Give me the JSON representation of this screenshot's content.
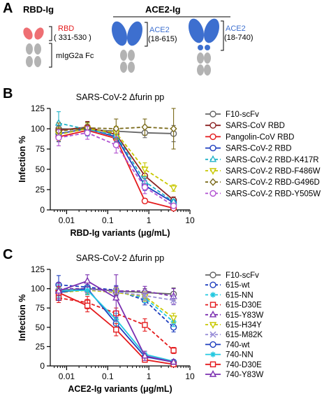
{
  "panel_a": {
    "letter": "A",
    "rbd_title": "RBD-Ig",
    "ace2_title": "ACE2-Ig",
    "rbd_label": "RBD",
    "rbd_range": "( 331-530 )",
    "fc_label": "mIgG2a Fc",
    "ace2_label_1": "ACE2",
    "ace2_range_1": "(18-615)",
    "ace2_label_2": "ACE2",
    "ace2_range_2": "(18-740)",
    "colors": {
      "rbd": "#ee6f73",
      "ace2": "#3d6fcf",
      "fc": "#b3b3b3"
    }
  },
  "chart_data": [
    {
      "panel": "B",
      "type": "line",
      "title": "SARS-CoV-2 Δfurin pp",
      "xlabel": "RBD-Ig variants (μg/mL)",
      "ylabel": "Infection %",
      "x_scale": "log",
      "xlim": [
        0.004,
        10
      ],
      "ylim": [
        0,
        125
      ],
      "x_ticks": [
        0.01,
        0.1,
        1,
        10
      ],
      "x_tick_labels": [
        "0.01",
        "0.1",
        "1",
        "10"
      ],
      "y_ticks": [
        0,
        25,
        50,
        75,
        100,
        125
      ],
      "y_tick_labels": [
        "0",
        "25",
        "50",
        "75",
        "100",
        "125"
      ],
      "legend_position": "right",
      "x": [
        0.0064,
        0.032,
        0.16,
        0.8,
        4
      ],
      "series": [
        {
          "name": "F10-scFv",
          "color": "#666666",
          "dash": "solid",
          "marker": "circle",
          "values": [
            100,
            99,
            97,
            95,
            94
          ],
          "err": [
            8,
            6,
            5,
            6,
            10
          ]
        },
        {
          "name": "SARS-CoV RBD",
          "color": "#8b2323",
          "dash": "solid",
          "marker": "circle",
          "values": [
            98,
            102,
            93,
            42,
            12
          ],
          "err": [
            8,
            7,
            10,
            8,
            4
          ]
        },
        {
          "name": "Pangolin-CoV RBD",
          "color": "#e41a1c",
          "dash": "solid",
          "marker": "circle",
          "values": [
            90,
            98,
            88,
            11,
            2
          ],
          "err": [
            6,
            6,
            8,
            3,
            2
          ]
        },
        {
          "name": "SARS-CoV-2 RBD",
          "color": "#1f3fbf",
          "dash": "solid",
          "marker": "circle",
          "values": [
            94,
            100,
            90,
            30,
            9
          ],
          "err": [
            10,
            8,
            9,
            6,
            3
          ]
        },
        {
          "name": "SARS-CoV-2 RBD-K417R",
          "color": "#23b3c8",
          "dash": "dash",
          "marker": "triangle-up",
          "values": [
            107,
            99,
            92,
            35,
            10
          ],
          "err": [
            14,
            8,
            8,
            6,
            3
          ]
        },
        {
          "name": "SARS-CoV-2 RBD-F486W",
          "color": "#c8c800",
          "dash": "dash",
          "marker": "triangle-down",
          "values": [
            93,
            100,
            95,
            50,
            27
          ],
          "err": [
            8,
            7,
            8,
            8,
            4
          ]
        },
        {
          "name": "SARS-CoV-2 RBD-G496D",
          "color": "#7a6a1a",
          "dash": "dash",
          "marker": "diamond",
          "values": [
            97,
            101,
            100,
            102,
            100
          ],
          "err": [
            10,
            7,
            12,
            10,
            25
          ]
        },
        {
          "name": "SARS-CoV-2 RBD-Y505W",
          "color": "#b04fd0",
          "dash": "dash",
          "marker": "circle",
          "values": [
            89,
            95,
            80,
            28,
            5
          ],
          "err": [
            10,
            8,
            10,
            8,
            3
          ]
        }
      ]
    },
    {
      "panel": "C",
      "type": "line",
      "title": "SARS-CoV-2 Δfurin pp",
      "xlabel": "ACE2-Ig variants (μg/mL)",
      "ylabel": "Infection %",
      "x_scale": "log",
      "xlim": [
        0.004,
        10
      ],
      "ylim": [
        0,
        125
      ],
      "x_ticks": [
        0.01,
        0.1,
        1,
        10
      ],
      "x_tick_labels": [
        "0.01",
        "0.1",
        "1",
        "10"
      ],
      "y_ticks": [
        0,
        25,
        50,
        75,
        100,
        125
      ],
      "y_tick_labels": [
        "0",
        "25",
        "50",
        "75",
        "100",
        "125"
      ],
      "legend_position": "right",
      "x": [
        0.0064,
        0.032,
        0.16,
        0.8,
        4
      ],
      "series": [
        {
          "name": "F10-scFv",
          "color": "#666666",
          "dash": "solid",
          "marker": "circle",
          "values": [
            98,
            100,
            97,
            95,
            93
          ],
          "err": [
            5,
            4,
            5,
            5,
            8
          ]
        },
        {
          "name": "615-wt",
          "color": "#1f3fbf",
          "dash": "dash",
          "marker": "circle",
          "values": [
            105,
            102,
            98,
            85,
            50
          ],
          "err": [
            12,
            6,
            6,
            6,
            6
          ]
        },
        {
          "name": "615-NN",
          "color": "#23c8e0",
          "dash": "dash",
          "marker": "star",
          "values": [
            100,
            98,
            96,
            88,
            57
          ],
          "err": [
            8,
            5,
            6,
            6,
            6
          ]
        },
        {
          "name": "615-D30E",
          "color": "#e41a1c",
          "dash": "dash",
          "marker": "square",
          "values": [
            88,
            82,
            68,
            53,
            20
          ],
          "err": [
            6,
            8,
            7,
            8,
            4
          ]
        },
        {
          "name": "615-Y83W",
          "color": "#7b2fb0",
          "dash": "dash",
          "marker": "triangle-up",
          "values": [
            100,
            100,
            97,
            97,
            90
          ],
          "err": [
            8,
            5,
            6,
            6,
            10
          ]
        },
        {
          "name": "615-H34Y",
          "color": "#c8c800",
          "dash": "dash",
          "marker": "triangle-down",
          "values": [
            95,
            98,
            95,
            90,
            62
          ],
          "err": [
            6,
            5,
            6,
            6,
            6
          ]
        },
        {
          "name": "615-M82K",
          "color": "#9a8fd8",
          "dash": "dash",
          "marker": "x",
          "values": [
            97,
            99,
            96,
            91,
            85
          ],
          "err": [
            6,
            5,
            6,
            6,
            6
          ]
        },
        {
          "name": "740-wt",
          "color": "#1f3fbf",
          "dash": "solid",
          "marker": "circle",
          "values": [
            95,
            100,
            55,
            12,
            5
          ],
          "err": [
            10,
            8,
            8,
            4,
            2
          ]
        },
        {
          "name": "740-NN",
          "color": "#23c8e0",
          "dash": "solid",
          "marker": "star",
          "values": [
            97,
            98,
            60,
            15,
            6
          ],
          "err": [
            8,
            6,
            8,
            4,
            2
          ]
        },
        {
          "name": "740-D30E",
          "color": "#e41a1c",
          "dash": "solid",
          "marker": "square",
          "values": [
            95,
            78,
            47,
            8,
            2
          ],
          "err": [
            8,
            8,
            8,
            3,
            2
          ]
        },
        {
          "name": "740-Y83W",
          "color": "#7b2fb0",
          "dash": "solid",
          "marker": "triangle-up",
          "values": [
            97,
            110,
            88,
            13,
            5
          ],
          "err": [
            10,
            8,
            30,
            6,
            3
          ]
        }
      ]
    }
  ]
}
